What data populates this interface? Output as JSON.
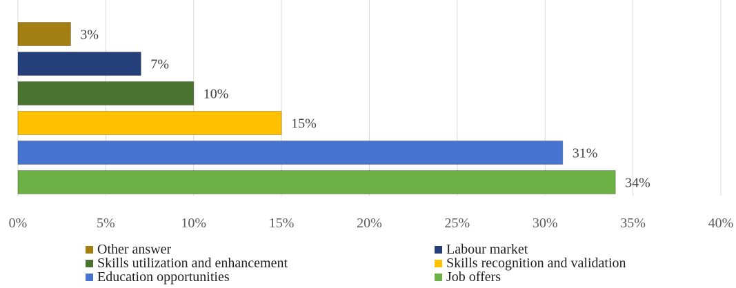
{
  "chart_data": {
    "type": "bar",
    "orientation": "horizontal",
    "title": "",
    "xlabel": "",
    "ylabel": "",
    "xlim": [
      0,
      40
    ],
    "x_ticks": [
      "0%",
      "5%",
      "10%",
      "15%",
      "20%",
      "25%",
      "30%",
      "35%",
      "40%"
    ],
    "x_tick_values": [
      0,
      5,
      10,
      15,
      20,
      25,
      30,
      35,
      40
    ],
    "grid": "vertical",
    "legend_position": "bottom",
    "series": [
      {
        "name": "Other answer",
        "value": 3,
        "label": "3%",
        "color": "#a37e12"
      },
      {
        "name": "Labour market",
        "value": 7,
        "label": "7%",
        "color": "#243f7a"
      },
      {
        "name": "Skills utilization and enhancement",
        "value": 10,
        "label": "10%",
        "color": "#4a7330"
      },
      {
        "name": "Skills recognition and validation",
        "value": 15,
        "label": "15%",
        "color": "#ffc000"
      },
      {
        "name": "Education opportunities",
        "value": 31,
        "label": "31%",
        "color": "#4674d0"
      },
      {
        "name": "Job offers",
        "value": 34,
        "label": "34%",
        "color": "#6cb146"
      }
    ],
    "legend_order": [
      0,
      1,
      2,
      3,
      4,
      5
    ]
  }
}
